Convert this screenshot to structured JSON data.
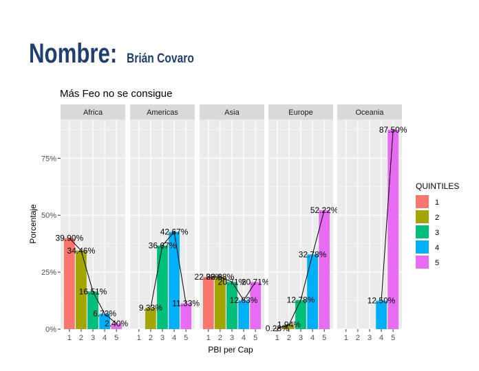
{
  "header": {
    "label": "Nombre:",
    "name": "Brián Covaro"
  },
  "colors": {
    "q1": "#F8766D",
    "q2": "#A3A500",
    "q3": "#00BF7D",
    "q4": "#00B0F6",
    "q5": "#E76BF3",
    "panel_bg": "#EBEBEB",
    "strip_bg": "#D9D9D9",
    "grid": "#FFFFFF"
  },
  "chart_data": {
    "type": "bar",
    "title": "Más Feo no se consigue",
    "xlabel": "PBI per Cap",
    "ylabel": "Porcentaje",
    "ylim": [
      0,
      0.92
    ],
    "y_ticks": [
      0,
      0.25,
      0.5,
      0.75
    ],
    "y_tick_labels": [
      "0%",
      "25%",
      "50%",
      "75%"
    ],
    "categories": [
      "1",
      "2",
      "3",
      "4",
      "5"
    ],
    "legend": {
      "title": "QUINTILES",
      "entries": [
        "1",
        "2",
        "3",
        "4",
        "5"
      ],
      "position": "right"
    },
    "facets": [
      {
        "name": "Africa",
        "values": [
          0.399,
          0.3446,
          0.1651,
          0.0673,
          0.024
        ],
        "labels": [
          "39.90%",
          "34.46%",
          "16.51%",
          "6.73%",
          "2.40%"
        ]
      },
      {
        "name": "Americas",
        "values": [
          null,
          0.0933,
          0.3667,
          0.4267,
          0.1133
        ],
        "labels": [
          "",
          "9.33%",
          "36.67%",
          "42.67%",
          "11.33%"
        ]
      },
      {
        "name": "Asia",
        "values": [
          0.2288,
          0.2288,
          0.2071,
          0.1263,
          0.2071
        ],
        "labels": [
          "22.88%",
          "22.88%",
          "20.71%",
          "12.63%",
          "20.71%"
        ]
      },
      {
        "name": "Europe",
        "values": [
          0.0028,
          0.0194,
          0.1278,
          0.3278,
          0.5222
        ],
        "labels": [
          "0.28%",
          "1.94%",
          "12.78%",
          "32.78%",
          "52.22%"
        ]
      },
      {
        "name": "Oceania",
        "values": [
          null,
          null,
          null,
          0.125,
          0.875
        ],
        "labels": [
          "",
          "",
          "",
          "12.50%",
          "87.50%"
        ]
      }
    ]
  }
}
